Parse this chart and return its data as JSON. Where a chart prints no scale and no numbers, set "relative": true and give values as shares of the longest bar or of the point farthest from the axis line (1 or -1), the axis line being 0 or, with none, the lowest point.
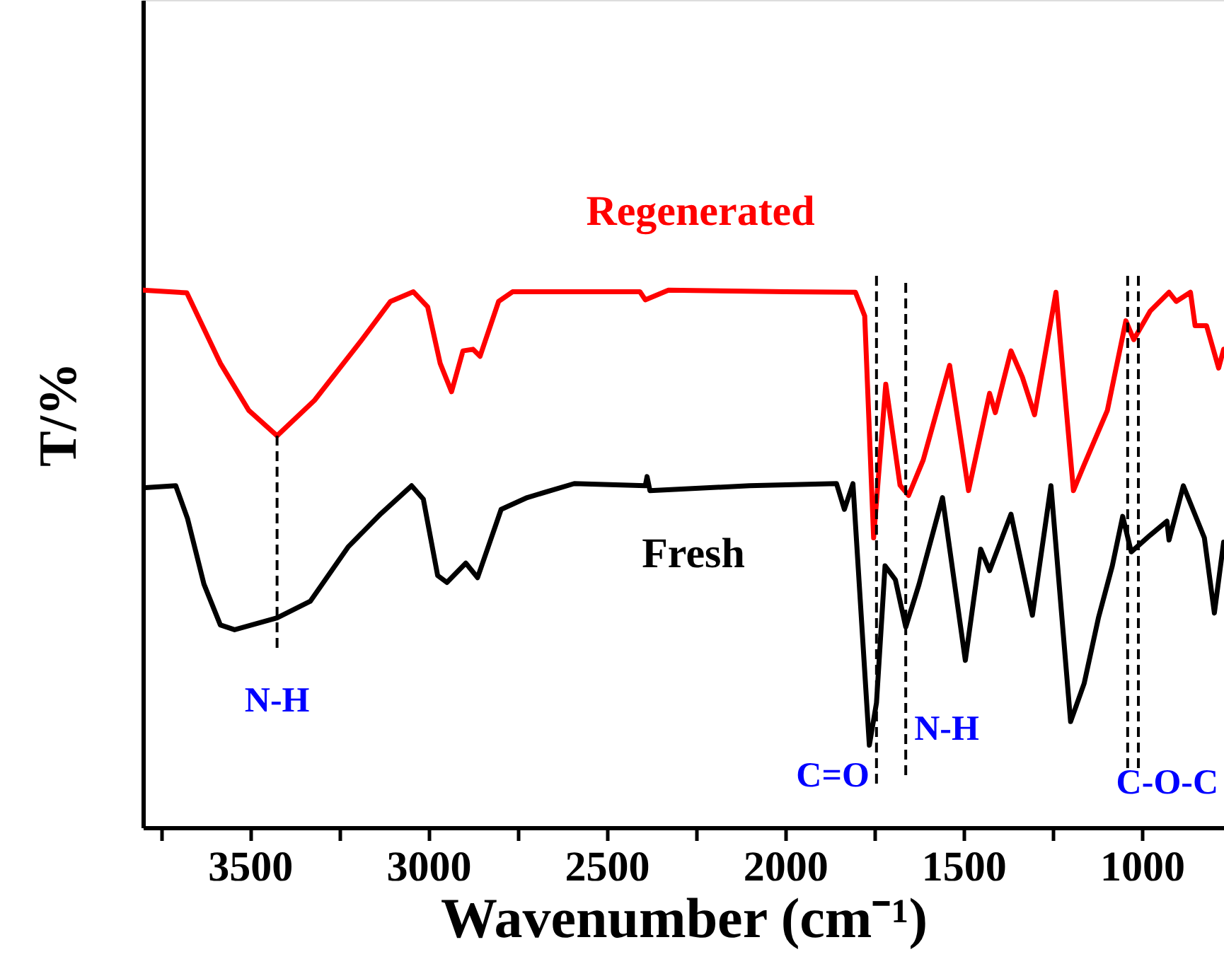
{
  "chart_data": {
    "type": "line",
    "relative": true,
    "xlabel": "Wavenumber (cm⁻¹)",
    "ylabel": "T/%",
    "xlim": [
      3800,
      770
    ],
    "xticks": [
      {
        "value": 3750,
        "label": null
      },
      3500,
      {
        "value": 3250,
        "label": null
      },
      3000,
      {
        "value": 2750,
        "label": null
      },
      2500,
      {
        "value": 2250,
        "label": null
      },
      2000,
      {
        "value": 1750,
        "label": null
      },
      1500,
      {
        "value": 1250,
        "label": null
      },
      1000
    ],
    "line_style": "solid",
    "marker": "none",
    "grid": false,
    "series": [
      {
        "name": "Regenerated",
        "color": "#ff0000",
        "x": [
          3800,
          3677,
          3583,
          3503,
          3424,
          3319,
          3186,
          3106,
          3042,
          3002,
          2967,
          2935,
          2903,
          2875,
          2855,
          2803,
          2764,
          2407,
          2392,
          2327,
          2000,
          1803,
          1777,
          1752,
          1718,
          1678,
          1654,
          1613,
          1539,
          1486,
          1427,
          1411,
          1367,
          1335,
          1301,
          1241,
          1192,
          1162,
          1097,
          1045,
          1023,
          977,
          924,
          904,
          864,
          851,
          819,
          785,
          771
        ],
        "values": [
          1.0,
          0.995,
          0.864,
          0.776,
          0.729,
          0.795,
          0.908,
          0.979,
          0.997,
          0.969,
          0.864,
          0.811,
          0.887,
          0.89,
          0.877,
          0.979,
          0.997,
          0.997,
          0.982,
          1.0,
          0.997,
          0.996,
          0.952,
          0.539,
          0.825,
          0.637,
          0.618,
          0.684,
          0.86,
          0.627,
          0.808,
          0.772,
          0.887,
          0.838,
          0.768,
          0.996,
          0.627,
          0.675,
          0.776,
          0.943,
          0.908,
          0.961,
          0.996,
          0.979,
          0.996,
          0.934,
          0.934,
          0.855,
          0.89
        ]
      },
      {
        "name": "Fresh",
        "color": "#000000",
        "x": [
          3800,
          3708,
          3675,
          3629,
          3583,
          3543,
          3424,
          3331,
          3225,
          3133,
          3047,
          3014,
          2974,
          2948,
          2895,
          2862,
          2796,
          2723,
          2591,
          2392,
          2387,
          2379,
          2100,
          1856,
          1834,
          1810,
          1764,
          1744,
          1720,
          1691,
          1662,
          1625,
          1559,
          1495,
          1452,
          1427,
          1367,
          1307,
          1255,
          1200,
          1162,
          1122,
          1083,
          1054,
          1030,
          977,
          930,
          924,
          884,
          825,
          797,
          771
        ],
        "values": [
          0.632,
          0.636,
          0.575,
          0.453,
          0.377,
          0.368,
          0.39,
          0.421,
          0.522,
          0.584,
          0.636,
          0.611,
          0.469,
          0.456,
          0.492,
          0.465,
          0.592,
          0.614,
          0.64,
          0.636,
          0.653,
          0.627,
          0.636,
          0.64,
          0.592,
          0.64,
          0.153,
          0.232,
          0.487,
          0.461,
          0.373,
          0.452,
          0.614,
          0.311,
          0.518,
          0.478,
          0.583,
          0.395,
          0.636,
          0.197,
          0.268,
          0.39,
          0.487,
          0.579,
          0.513,
          0.544,
          0.57,
          0.535,
          0.636,
          0.539,
          0.399,
          0.531
        ]
      }
    ],
    "ref_lines": [
      {
        "axis": "x",
        "value": 3424,
        "label": "N-H",
        "color": "#000000",
        "line_style": "dashed"
      },
      {
        "axis": "x",
        "value": 1744,
        "label": "C=O",
        "color": "#000000",
        "line_style": "dashed"
      },
      {
        "axis": "x",
        "value": 1662,
        "label": "N-H",
        "color": "#000000",
        "line_style": "dashed"
      },
      {
        "axis": "x",
        "value": 1040,
        "label": "C-O-C",
        "color": "#000000",
        "line_style": "dashed"
      },
      {
        "axis": "x",
        "value": 1010,
        "label": null,
        "color": "#000000",
        "line_style": "dashed"
      }
    ]
  }
}
